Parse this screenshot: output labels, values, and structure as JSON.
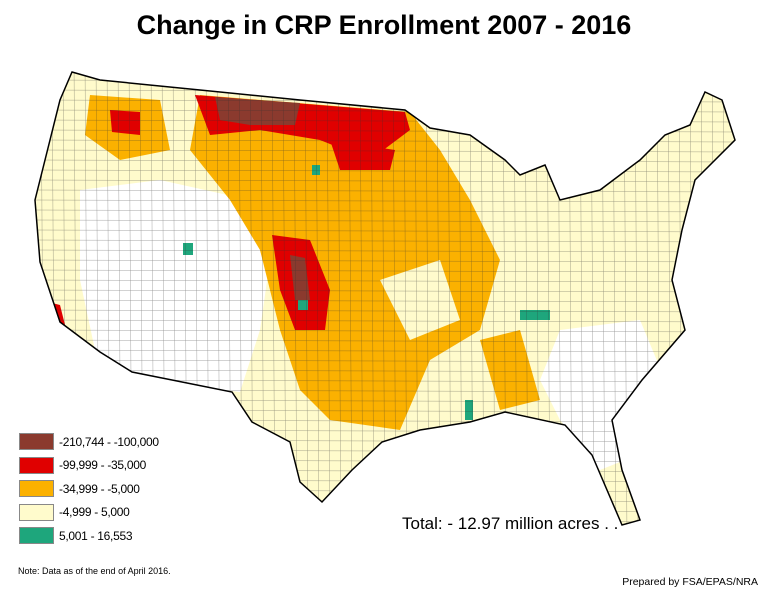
{
  "title": "Change in CRP Enrollment 2007 - 2016",
  "legend": [
    {
      "label": "-210,744 - -100,000",
      "color": "#8b3a2e"
    },
    {
      "label": "-99,999 - -35,000",
      "color": "#e00000"
    },
    {
      "label": "-34,999 - -5,000",
      "color": "#fbb100"
    },
    {
      "label": "-4,999 - 5,000",
      "color": "#fffbcc"
    },
    {
      "label": "5,001 - 16,553",
      "color": "#1ea67c"
    }
  ],
  "no_data_color": "#ffffff",
  "total": "Total: - 12.97 million acres . .",
  "note": "Note: Data as of the end of April 2016.",
  "credit": "Prepared by FSA/EPAS/NRA"
}
